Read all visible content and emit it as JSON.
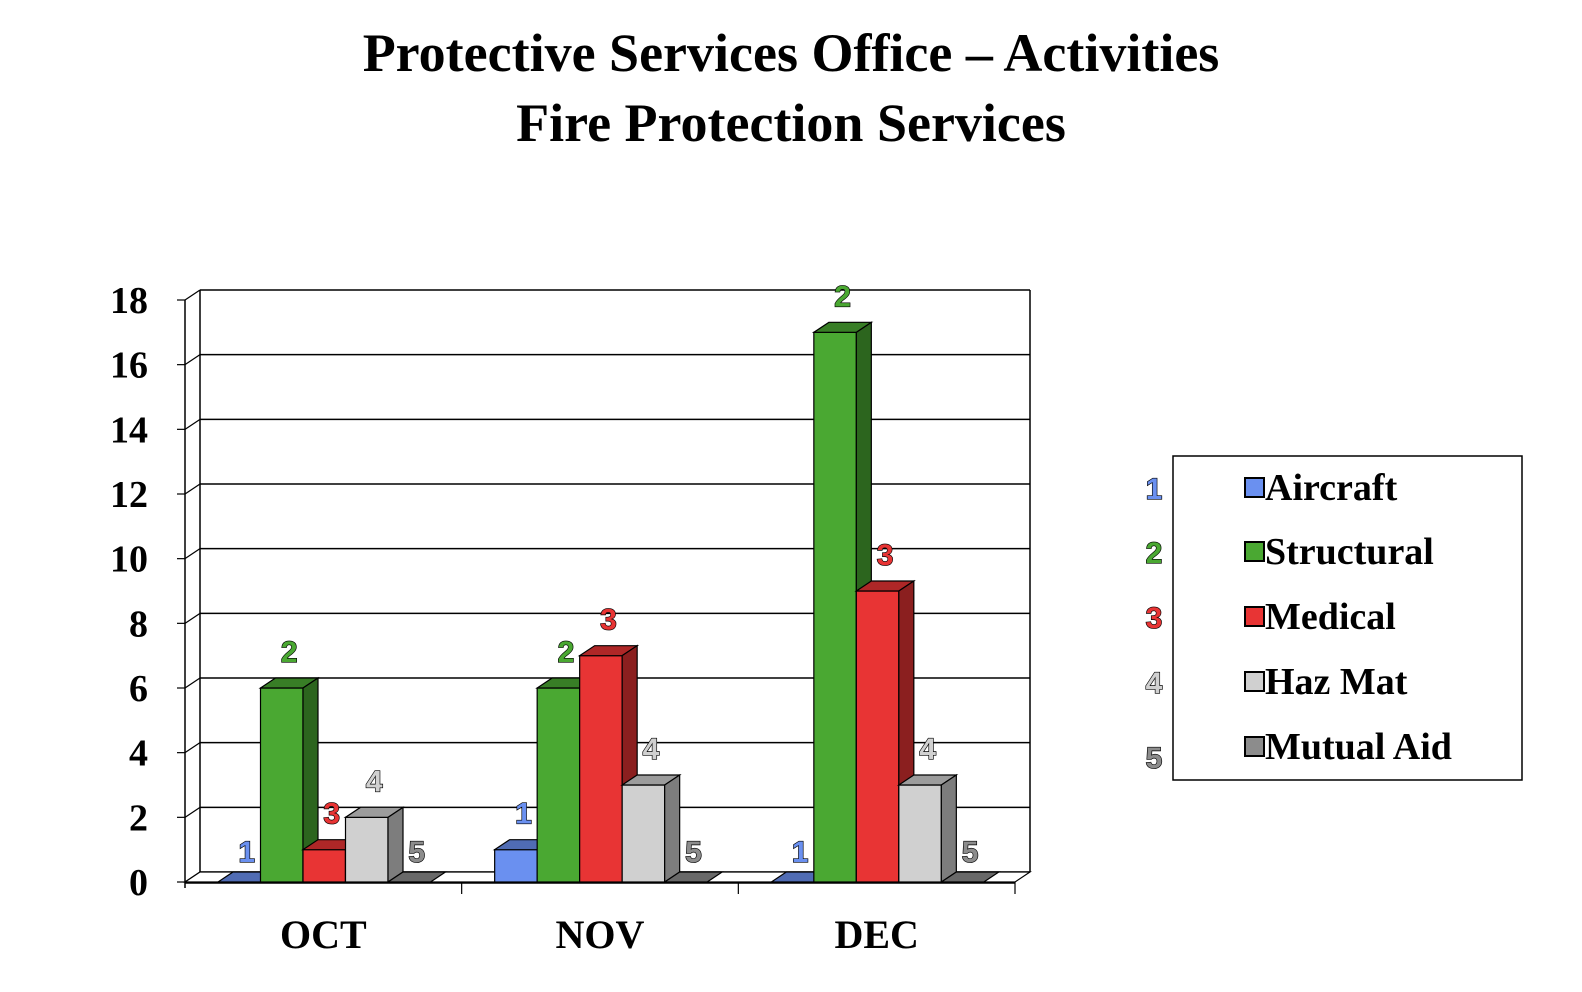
{
  "chart_data": {
    "type": "bar",
    "title": "Protective Services Office – Activities",
    "subtitle": "Fire Protection Services",
    "categories": [
      "OCT",
      "NOV",
      "DEC"
    ],
    "series": [
      {
        "name": "Aircraft",
        "marker": "1",
        "color": "#6a90f0",
        "values": [
          0,
          1,
          0
        ]
      },
      {
        "name": "Structural",
        "marker": "2",
        "color": "#4aa832",
        "values": [
          6,
          6,
          17
        ]
      },
      {
        "name": "Medical",
        "marker": "3",
        "color": "#e83434",
        "values": [
          1,
          7,
          9
        ]
      },
      {
        "name": "Haz Mat",
        "marker": "4",
        "color": "#d0d0d0",
        "values": [
          2,
          3,
          3
        ]
      },
      {
        "name": "Mutual Aid",
        "marker": "5",
        "color": "#8c8c8c",
        "values": [
          0,
          0,
          0
        ]
      }
    ],
    "ylim": [
      0,
      18
    ],
    "yticks": [
      "0",
      "2",
      "4",
      "6",
      "8",
      "10",
      "12",
      "14",
      "16",
      "18"
    ],
    "grid": true,
    "legend": "right",
    "xlabel": "",
    "ylabel": ""
  }
}
